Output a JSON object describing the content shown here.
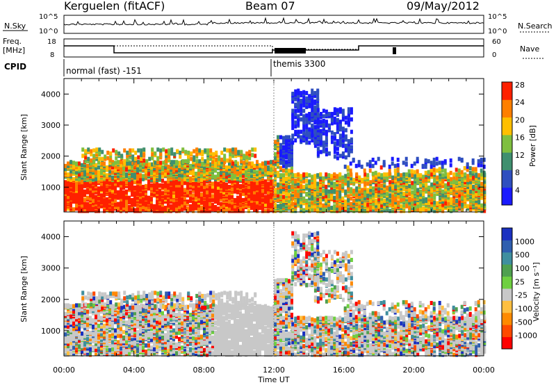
{
  "header": {
    "station": "Kerguelen (fitACF)",
    "beam": "Beam 07",
    "date": "09/May/2012"
  },
  "top_panels": {
    "nsky": {
      "label": "N.Sky",
      "ticks": [
        "10^5",
        "10^0"
      ],
      "right_ticks": [
        "10^5",
        "10^0"
      ],
      "right_label": "N.Search"
    },
    "freq": {
      "label_line1": "Freq.",
      "label_line2": "[MHz]",
      "ticks": [
        "18",
        "8"
      ],
      "right_ticks": [
        "60",
        "0"
      ],
      "right_label": "Nave"
    },
    "cpid": {
      "label": "CPID",
      "modes": [
        {
          "name": "normal (fast) -151",
          "start_hour": 0
        },
        {
          "name": "themis 3300",
          "start_hour": 12
        }
      ]
    }
  },
  "chart_data": [
    {
      "type": "heatmap",
      "panel": "power",
      "ylabel": "Slant Range [km]",
      "yticks": [
        1000,
        2000,
        3000,
        4000
      ],
      "ylim": [
        200,
        4500
      ],
      "xlim": [
        0,
        24
      ],
      "colorbar": {
        "label": "Power [dB]",
        "ticks": [
          "4",
          "8",
          "12",
          "16",
          "20",
          "24",
          "28"
        ],
        "range": [
          0,
          30
        ]
      },
      "colors": [
        "#1a1aff",
        "#2f4fbf",
        "#3f8f6f",
        "#7fbf3f",
        "#ffbf00",
        "#ff7f00",
        "#ff2000"
      ]
    },
    {
      "type": "heatmap",
      "panel": "velocity",
      "ylabel": "Slant Range [km]",
      "yticks": [
        1000,
        2000,
        3000,
        4000
      ],
      "ylim": [
        200,
        4500
      ],
      "xlim": [
        0,
        24
      ],
      "xlabel": "Time UT",
      "xticks": [
        "00:00",
        "04:00",
        "08:00",
        "12:00",
        "16:00",
        "20:00",
        "00:00"
      ],
      "colorbar": {
        "label": "Velocity [m s⁻¹]",
        "ticks": [
          "1000",
          "500",
          "100",
          "25",
          "-25",
          "-100",
          "-500",
          "-1000"
        ]
      },
      "colors": [
        "#ff0000",
        "#ff4a00",
        "#ff8a00",
        "#ffbf40",
        "#c8c8c8",
        "#6fd040",
        "#4fa04f",
        "#3f8f9f",
        "#2f5faf",
        "#1a30c0"
      ]
    }
  ]
}
